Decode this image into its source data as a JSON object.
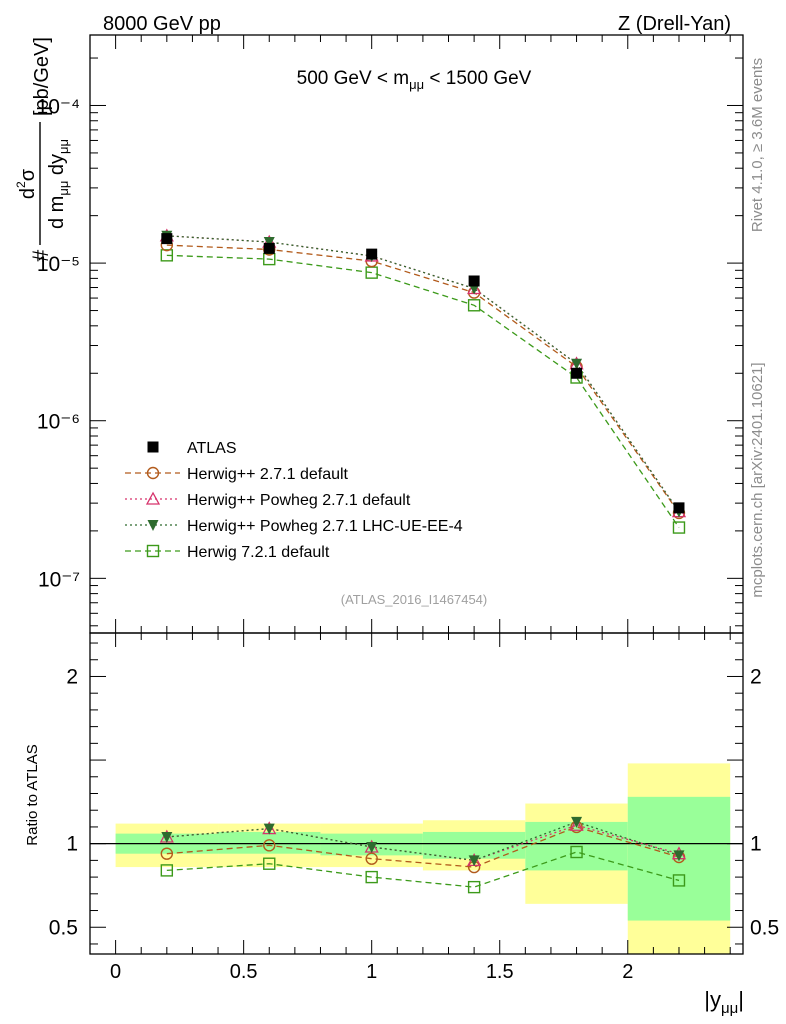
{
  "header": {
    "left": "8000 GeV pp",
    "right": "Z (Drell-Yan)"
  },
  "side_labels": {
    "rivet": "Rivet 4.1.0, ≥ 3.6M events",
    "mcplots": "mcplots.cern.ch [arXiv:2401.10621]"
  },
  "colors": {
    "atlas": "#000000",
    "herwigpp": "#b25b1c",
    "powheg": "#d6336c",
    "powheg_lhc": "#2e6b2e",
    "herwig7": "#3c9a1a",
    "band_inner": "#99ff99",
    "band_outer": "#ffff99"
  },
  "chart_data": [
    {
      "type": "line",
      "title": "500 GeV < mμμ < 1500 GeV",
      "ylabel": "d²σ / d mμμ dyμμ [pb/GeV]",
      "yscale": "log",
      "xlim": [
        -0.1,
        2.45
      ],
      "ylim": [
        4.5e-08,
        0.00028
      ],
      "ytick_labels": [
        "10⁻⁷",
        "10⁻⁶",
        "10⁻⁵",
        "10⁻⁴"
      ],
      "watermark": "(ATLAS_2016_I1467454)",
      "bins": [
        [
          0,
          0.4
        ],
        [
          0.4,
          0.8
        ],
        [
          0.8,
          1.2
        ],
        [
          1.2,
          1.6
        ],
        [
          1.6,
          2.0
        ],
        [
          2.0,
          2.4
        ]
      ],
      "x": [
        0.2,
        0.6,
        1.0,
        1.4,
        1.8,
        2.2
      ],
      "series": [
        {
          "name": "ATLAS",
          "style": "data",
          "marker": "square-filled",
          "color": "#000000",
          "values": [
            1.43e-05,
            1.24e-05,
            1.14e-05,
            7.7e-06,
            2e-06,
            2.8e-07
          ]
        },
        {
          "name": "Herwig++ 2.7.1 default",
          "dash": "dashed",
          "marker": "circle-open",
          "color": "#b25b1c",
          "values": [
            1.3e-05,
            1.22e-05,
            1.03e-05,
            6.5e-06,
            2.2e-06,
            2.6e-07
          ]
        },
        {
          "name": "Herwig++ Powheg 2.7.1 default",
          "dash": "dotted",
          "marker": "triangle-open",
          "color": "#d6336c",
          "values": [
            1.49e-05,
            1.36e-05,
            1.11e-05,
            6.9e-06,
            2.3e-06,
            2.65e-07
          ]
        },
        {
          "name": "Herwig++ Powheg 2.7.1 LHC-UE-EE-4",
          "dash": "dotted",
          "marker": "triangle-down-filled",
          "color": "#2e6b2e",
          "values": [
            1.49e-05,
            1.36e-05,
            1.11e-05,
            6.9e-06,
            2.3e-06,
            2.65e-07
          ]
        },
        {
          "name": "Herwig 7.2.1 default",
          "dash": "dashed",
          "marker": "square-open",
          "color": "#3c9a1a",
          "values": [
            1.12e-05,
            1.06e-05,
            8.7e-06,
            5.4e-06,
            1.88e-06,
            2.1e-07
          ]
        }
      ],
      "legend_position": "lower-left"
    },
    {
      "type": "line",
      "ylabel": "Ratio to ATLAS",
      "xlabel": "|yμμ|",
      "yscale": "linear",
      "xlim": [
        -0.1,
        2.45
      ],
      "ylim": [
        0.34,
        2.26
      ],
      "yticks": [
        0.5,
        1,
        2
      ],
      "ytick_labels": [
        "0.5",
        "1",
        "2"
      ],
      "xticks": [
        0,
        0.5,
        1,
        1.5,
        2
      ],
      "xtick_labels": [
        "0",
        "0.5",
        "1",
        "1.5",
        "2"
      ],
      "bands": {
        "inner": [
          [
            0.94,
            1.06
          ],
          [
            0.94,
            1.07
          ],
          [
            0.93,
            1.06
          ],
          [
            0.91,
            1.07
          ],
          [
            0.84,
            1.13
          ],
          [
            0.54,
            1.28
          ]
        ],
        "outer": [
          [
            0.86,
            1.12
          ],
          [
            0.86,
            1.12
          ],
          [
            0.86,
            1.12
          ],
          [
            0.84,
            1.14
          ],
          [
            0.64,
            1.24
          ],
          [
            0.31,
            1.48
          ]
        ]
      },
      "series": [
        {
          "name": "Herwig++ 2.7.1 default",
          "values": [
            0.94,
            0.99,
            0.91,
            0.86,
            1.1,
            0.92
          ]
        },
        {
          "name": "Herwig++ Powheg 2.7.1 default",
          "values": [
            1.04,
            1.09,
            0.98,
            0.9,
            1.11,
            0.94
          ]
        },
        {
          "name": "Herwig++ Powheg 2.7.1 LHC-UE-EE-4",
          "values": [
            1.04,
            1.09,
            0.98,
            0.9,
            1.13,
            0.93
          ]
        },
        {
          "name": "Herwig 7.2.1 default",
          "values": [
            0.84,
            0.88,
            0.8,
            0.74,
            0.95,
            0.78
          ]
        }
      ]
    }
  ]
}
